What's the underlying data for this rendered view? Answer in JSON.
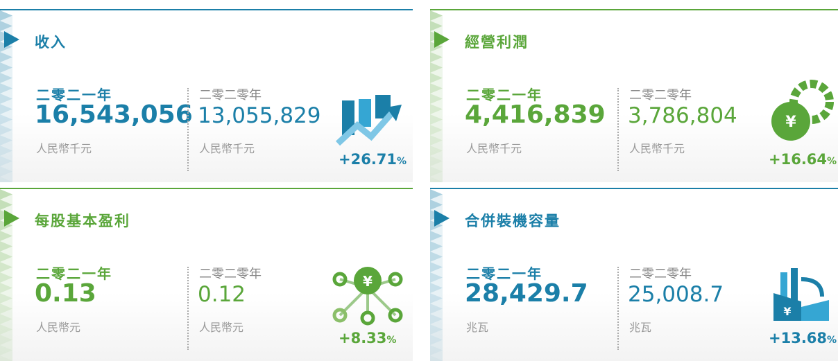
{
  "panels": [
    {
      "title": "收入",
      "color": "#1b7fa8",
      "current_label": "二零二一年",
      "current_value": "16,543,056",
      "current_unit": "人民幣千元",
      "previous_label": "二零二零年",
      "previous_value": "13,055,829",
      "previous_unit": "人民幣千元",
      "change": "+26.71",
      "percent_sign": "%"
    },
    {
      "title": "經營利潤",
      "color": "#5aa63a",
      "current_label": "二零二一年",
      "current_value": "4,416,839",
      "current_unit": "人民幣千元",
      "previous_label": "二零二零年",
      "previous_value": "3,786,804",
      "previous_unit": "人民幣千元",
      "change": "+16.64",
      "percent_sign": "%",
      "icon_text": "¥"
    },
    {
      "title": "每股基本盈利",
      "color": "#5aa63a",
      "current_label": "二零二一年",
      "current_value": "0.13",
      "current_unit": "人民幣元",
      "previous_label": "二零二零年",
      "previous_value": "0.12",
      "previous_unit": "人民幣元",
      "change": "+8.33",
      "percent_sign": "%",
      "icon_text": "¥"
    },
    {
      "title": "合併裝機容量",
      "color": "#1b7fa8",
      "current_label": "二零二一年",
      "current_value": "28,429.7",
      "current_unit": "兆瓦",
      "previous_label": "二零二零年",
      "previous_value": "25,008.7",
      "previous_unit": "兆瓦",
      "change": "+13.68",
      "percent_sign": "%",
      "icon_text": "¥"
    }
  ]
}
